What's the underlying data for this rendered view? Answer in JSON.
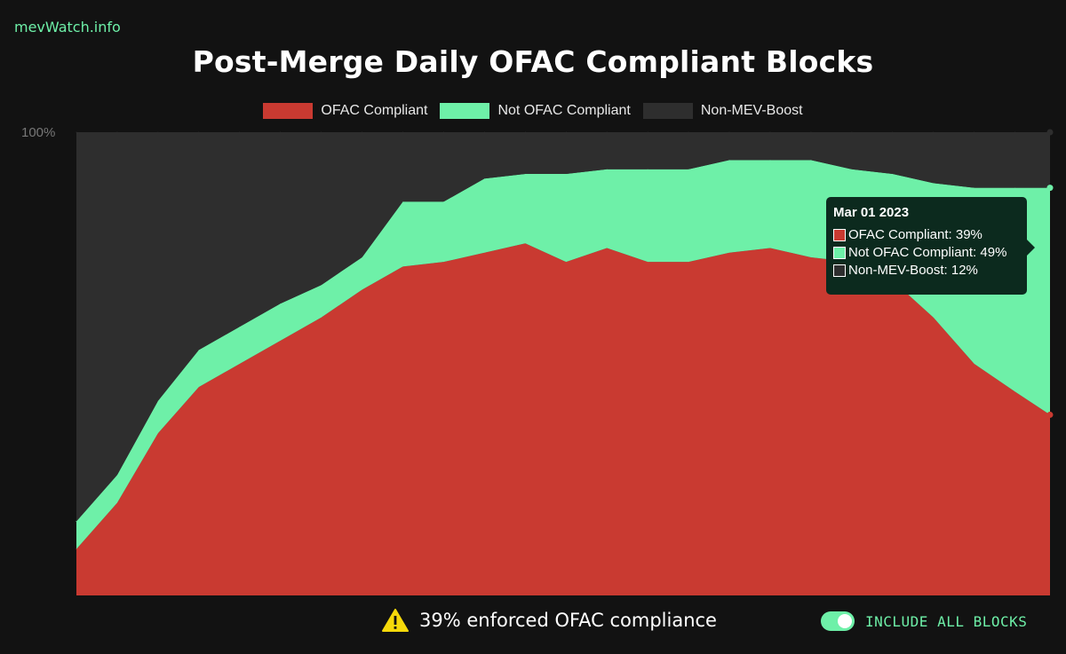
{
  "brand": "mevWatch.info",
  "footer": {
    "message": "39% enforced OFAC compliance",
    "toggle_label": "INCLUDE ALL BLOCKS",
    "toggle_on": true
  },
  "tooltip": {
    "date": "Mar 01 2023",
    "rows": [
      {
        "label": "OFAC Compliant: 39%",
        "color": "#c93a31"
      },
      {
        "label": "Not OFAC Compliant: 49%",
        "color": "#6ef0a8"
      },
      {
        "label": "Non-MEV-Boost: 12%",
        "color": "#2e2e2e"
      }
    ]
  },
  "chart_data": {
    "type": "area",
    "stacked": true,
    "title": "Post-Merge Daily OFAC Compliant Blocks",
    "xlabel": "",
    "ylabel": "",
    "y_tick_labels": [
      "100%"
    ],
    "ylim": [
      0,
      100
    ],
    "legend_position": "top",
    "grid": false,
    "x_start": "2022-09-15",
    "x_end": "2023-03-01",
    "x": [
      "2022-09-15",
      "2022-09-22",
      "2022-09-29",
      "2022-10-06",
      "2022-10-13",
      "2022-10-20",
      "2022-10-27",
      "2022-11-03",
      "2022-11-10",
      "2022-11-17",
      "2022-11-24",
      "2022-12-01",
      "2022-12-08",
      "2022-12-15",
      "2022-12-22",
      "2022-12-29",
      "2023-01-05",
      "2023-01-12",
      "2023-01-19",
      "2023-01-26",
      "2023-02-02",
      "2023-02-09",
      "2023-02-16",
      "2023-02-23",
      "2023-03-01"
    ],
    "series": [
      {
        "name": "OFAC Compliant",
        "color": "#c93a31",
        "values": [
          10,
          20,
          35,
          45,
          50,
          55,
          60,
          66,
          71,
          72,
          74,
          76,
          72,
          75,
          72,
          72,
          74,
          75,
          73,
          72,
          68,
          60,
          50,
          44,
          39
        ]
      },
      {
        "name": "Not OFAC Compliant",
        "color": "#6ef0a8",
        "values": [
          6,
          6,
          7,
          8,
          8,
          8,
          7,
          7,
          14,
          13,
          16,
          15,
          19,
          17,
          20,
          20,
          20,
          19,
          21,
          20,
          23,
          29,
          38,
          44,
          49
        ]
      },
      {
        "name": "Non-MEV-Boost",
        "color": "#2e2e2e",
        "values": [
          84,
          74,
          58,
          47,
          42,
          37,
          33,
          27,
          15,
          15,
          10,
          9,
          9,
          8,
          8,
          8,
          6,
          6,
          6,
          8,
          9,
          11,
          12,
          12,
          12
        ]
      }
    ]
  }
}
